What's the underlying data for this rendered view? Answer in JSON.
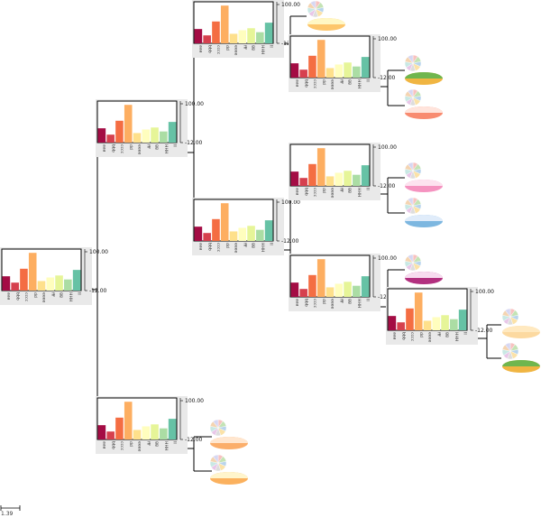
{
  "diagram": {
    "type": "phylogenetic-tree-with-bar-and-pie-glyphs",
    "palette": {
      "aaa": "#a40c44",
      "bbb": "#d6404e",
      "cccc": "#f46d43",
      "dd": "#fdae61",
      "eeee": "#fee08b",
      "fff": "#fffebe",
      "gg": "#e6f598",
      "HHH": "#abdda4",
      "II": "#66c2a5",
      "panel_bg": "#e9e9e9",
      "branch": "#000000"
    },
    "bar_chart": {
      "categories": [
        "aaa",
        "bbb",
        "cccc",
        "dd",
        "eeee",
        "fff",
        "gg",
        "HHH",
        "II"
      ],
      "values": [
        0.36,
        0.2,
        0.55,
        0.95,
        0.24,
        0.33,
        0.38,
        0.28,
        0.52
      ],
      "axis_max_label": "100.00",
      "axis_min_label": "-12.00"
    },
    "pie_chart": {
      "slices": [
        0.1,
        0.12,
        0.1,
        0.13,
        0.11,
        0.1,
        0.12,
        0.11,
        0.11
      ],
      "colors": [
        "#f7c2c0",
        "#c4e3b5",
        "#b8d4ec",
        "#fbe2a8",
        "#dddddd",
        "#e8c7e8",
        "#c9e8e4",
        "#f4d4b1",
        "#d7d7f2"
      ]
    },
    "leaf_ellipses": [
      [
        "#fff7c4",
        "#fdc66c"
      ],
      [
        "#6fb64e",
        "#f0b542"
      ],
      [
        "#ffe4dc",
        "#f88b70"
      ],
      [
        "#fde2ef",
        "#f593c0"
      ],
      [
        "#e0ecfa",
        "#7db7e0"
      ],
      [
        "#f7dcef",
        "#b2307f"
      ],
      [
        "#ffe9c0",
        "#fcd9a0"
      ],
      [
        "#ffe6cf",
        "#fbae6b"
      ],
      [
        "#fff5cc",
        "#fbb15e"
      ]
    ],
    "scale_label": "1.39"
  }
}
